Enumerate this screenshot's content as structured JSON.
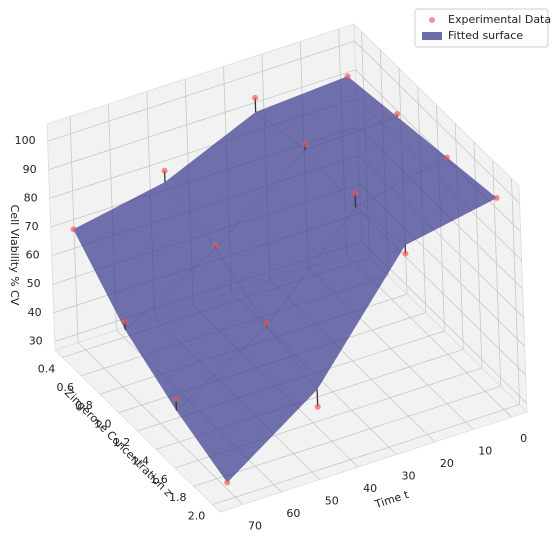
{
  "chart_data": {
    "type": "surface3d",
    "xlabel": "Time t",
    "ylabel": "Zingerone Concentration z",
    "zlabel": "Cell Viability % CV",
    "x": [
      0,
      24,
      48,
      72
    ],
    "y": [
      0.4,
      0.933,
      1.467,
      2.0
    ],
    "series": [
      {
        "name": "Experimental Data",
        "color": "#ee5555",
        "values": [
          [
            92,
            95,
            80,
            70
          ],
          [
            96,
            96,
            71,
            55
          ],
          [
            98,
            96,
            61,
            45
          ],
          [
            101,
            92,
            49,
            33
          ]
        ]
      },
      {
        "name": "Fitted surface",
        "color": "#3b3b8f",
        "values": [
          [
            92,
            90,
            76,
            70
          ],
          [
            95,
            94,
            70,
            52
          ],
          [
            98,
            91,
            60,
            41
          ],
          [
            101,
            95,
            55,
            33
          ]
        ]
      }
    ],
    "xlim": [
      -4,
      76
    ],
    "xticks": [
      0,
      10,
      20,
      30,
      40,
      50,
      60,
      70
    ],
    "ylim": [
      0.32,
      2.08
    ],
    "yticks": [
      0.4,
      0.6,
      0.8,
      {
        "value": 1.0,
        "label": "1.0"
      },
      1.2,
      1.4,
      1.6,
      1.8,
      {
        "value": 2.0,
        "label": "2.0"
      }
    ],
    "zlim": [
      27,
      106
    ],
    "zticks": [
      30,
      40,
      50,
      60,
      70,
      80,
      90,
      100
    ],
    "grid": true,
    "legend": "upper right"
  }
}
